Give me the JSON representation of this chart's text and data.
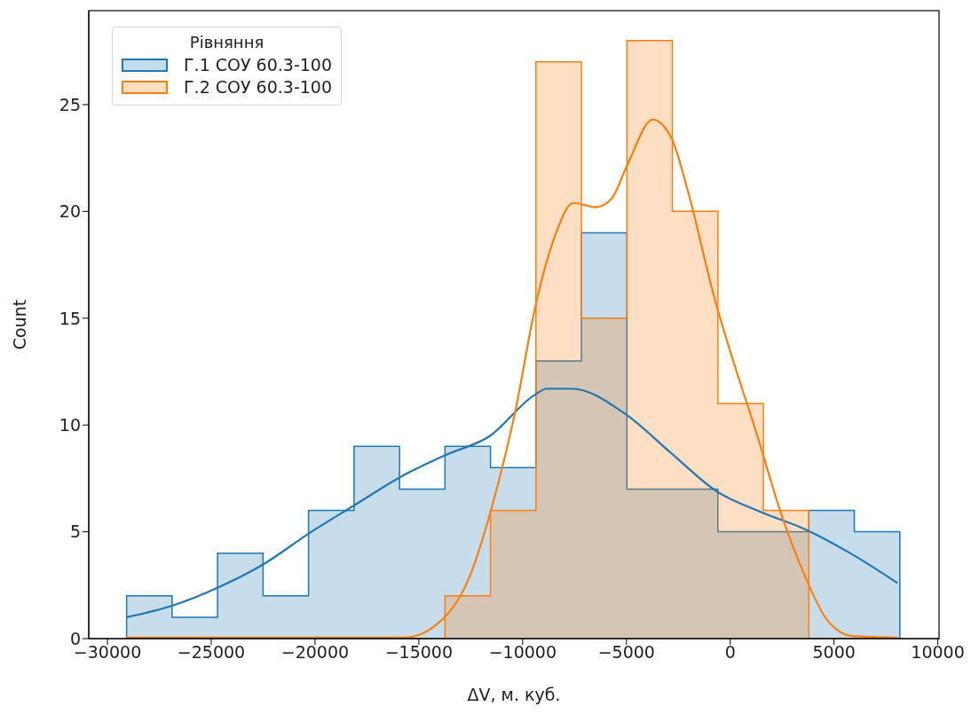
{
  "chart_data": {
    "type": "histogram",
    "xlabel": "ΔV, м. куб.",
    "ylabel": "Count",
    "legend_title": "Рівняння",
    "legend": "top left",
    "grid": false,
    "bins": [
      -29077,
      -26886,
      -24695,
      -22504,
      -20313,
      -18122,
      -15931,
      -13740,
      -11549,
      -9358,
      -7167,
      -4976,
      -2785,
      -594,
      1597,
      3788,
      5979,
      8170
    ],
    "xlim": [
      -30900,
      10060
    ],
    "xticks": [
      -30000,
      -25000,
      -20000,
      -15000,
      -10000,
      -5000,
      0,
      5000,
      10000
    ],
    "ylim": [
      0,
      29.4
    ],
    "yticks": [
      0,
      5,
      10,
      15,
      20,
      25
    ],
    "series": [
      {
        "name": "Г.1 СОУ 60.3-100",
        "color": "#1f77b4",
        "values": [
          2,
          1,
          4,
          2,
          6,
          9,
          7,
          9,
          8,
          13,
          19,
          7,
          7,
          5,
          5,
          6,
          5
        ]
      },
      {
        "name": "Г.2 СОУ 60.3-100",
        "color": "#ff7f0e",
        "values": [
          0,
          0,
          0,
          0,
          0,
          0,
          0,
          2,
          6,
          27,
          15,
          28,
          20,
          11,
          6,
          0,
          0
        ]
      },
      {
        "type": "line",
        "color": "#1f77b4",
        "x": [
          -29080,
          -26795,
          -24658,
          -22453,
          -20244,
          -18107,
          -15897,
          -13692,
          -11556,
          -9487,
          -8836,
          -7637,
          -5030,
          -2863,
          -660,
          1560,
          3697,
          5833,
          8060
        ],
        "values": [
          1.0,
          1.57,
          2.4,
          3.5,
          4.96,
          6.24,
          7.56,
          8.6,
          9.5,
          11.36,
          11.7,
          11.7,
          10.5,
          8.7,
          6.9,
          5.9,
          5.08,
          3.97,
          2.6
        ]
      },
      {
        "type": "line",
        "color": "#ff7f0e",
        "x": [
          -29080,
          -15684,
          -13692,
          -12551,
          -11556,
          -10342,
          -9376,
          -8462,
          -7551,
          -6483,
          -5714,
          -4945,
          -3731,
          -2812,
          -2051,
          -829,
          1400,
          2469,
          3615,
          4611,
          5897,
          8060
        ],
        "values": [
          0.05,
          0.05,
          1.07,
          2.9,
          5.9,
          10.7,
          15.6,
          18.8,
          20.4,
          20.2,
          20.6,
          22.2,
          24.3,
          23.4,
          21.0,
          16.2,
          9.2,
          5.8,
          2.9,
          0.95,
          0.12,
          0.05
        ]
      }
    ]
  }
}
